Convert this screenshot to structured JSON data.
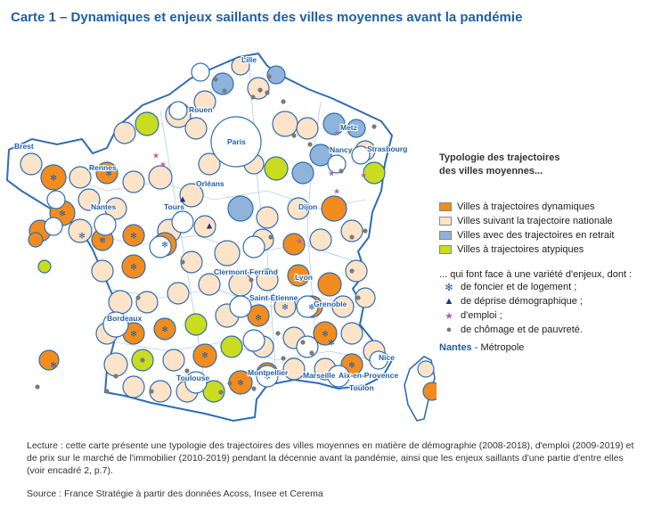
{
  "title": "Carte 1 – Dynamiques et enjeux saillants des villes moyennes avant la pandémie",
  "colors": {
    "dynamique": "#f28c1e",
    "nationale": "#fde3c8",
    "retrait": "#8fb3da",
    "atypique": "#c9dc1f",
    "border": "#2e6db4",
    "metro_fill": "#ffffff"
  },
  "legend": {
    "title_line1": "Typologie des trajectoires",
    "title_line2": "des villes moyennes...",
    "categories": [
      {
        "label": "Villes à trajectoires dynamiques",
        "color": "#f28c1e"
      },
      {
        "label": "Villes suivant la trajectoire nationale",
        "color": "#fde3c8"
      },
      {
        "label": "Villes avec des trajectoires en retrait",
        "color": "#8fb3da"
      },
      {
        "label": "Villes à trajectoires atypiques",
        "color": "#c9dc1f"
      }
    ],
    "enjeux_intro": "... qui font face à une variété d'enjeux, dont :",
    "enjeux": [
      {
        "symbol": "✻",
        "icon": "asterisk-icon",
        "color": "#1f5fa8",
        "label": "de foncier et de logement ;"
      },
      {
        "symbol": "▲",
        "icon": "triangle-icon",
        "color": "#1e2f8a",
        "label": "de déprise démographique ;"
      },
      {
        "symbol": "★",
        "icon": "star-icon",
        "color": "#b25fb0",
        "label": "d'emploi ;"
      },
      {
        "symbol": "●",
        "icon": "dot-icon",
        "color": "#7a7a7a",
        "label": "de chômage et de pauvreté."
      }
    ],
    "metro_example": "Nantes",
    "metro_label": "- Métropole"
  },
  "cities": [
    "Lille",
    "Rouen",
    "Paris",
    "Metz",
    "Strasbourg",
    "Nancy",
    "Brest",
    "Rennes",
    "Orléans",
    "Nantes",
    "Tours",
    "Dijon",
    "Clermont-Ferrand",
    "Lyon",
    "Saint-Étienne",
    "Grenoble",
    "Bordeaux",
    "Montpellier",
    "Nice",
    "Marseille",
    "Aix-en-Provence",
    "Toulouse",
    "Toulon"
  ],
  "footer": "Lecture : cette carte présente une typologie des trajectoires des villes moyennes en matière de démographie (2008-2018), d'emploi (2009-2019) et de prix sur le marché de l'immobilier (2010-2019) pendant la décennie avant la pandémie, ainsi que les enjeux saillants d'une partie d'entre elles (voir encadré 2, p.7).",
  "source": "Source : France Stratégie à partir des données Acoss, Insee et Cerema"
}
